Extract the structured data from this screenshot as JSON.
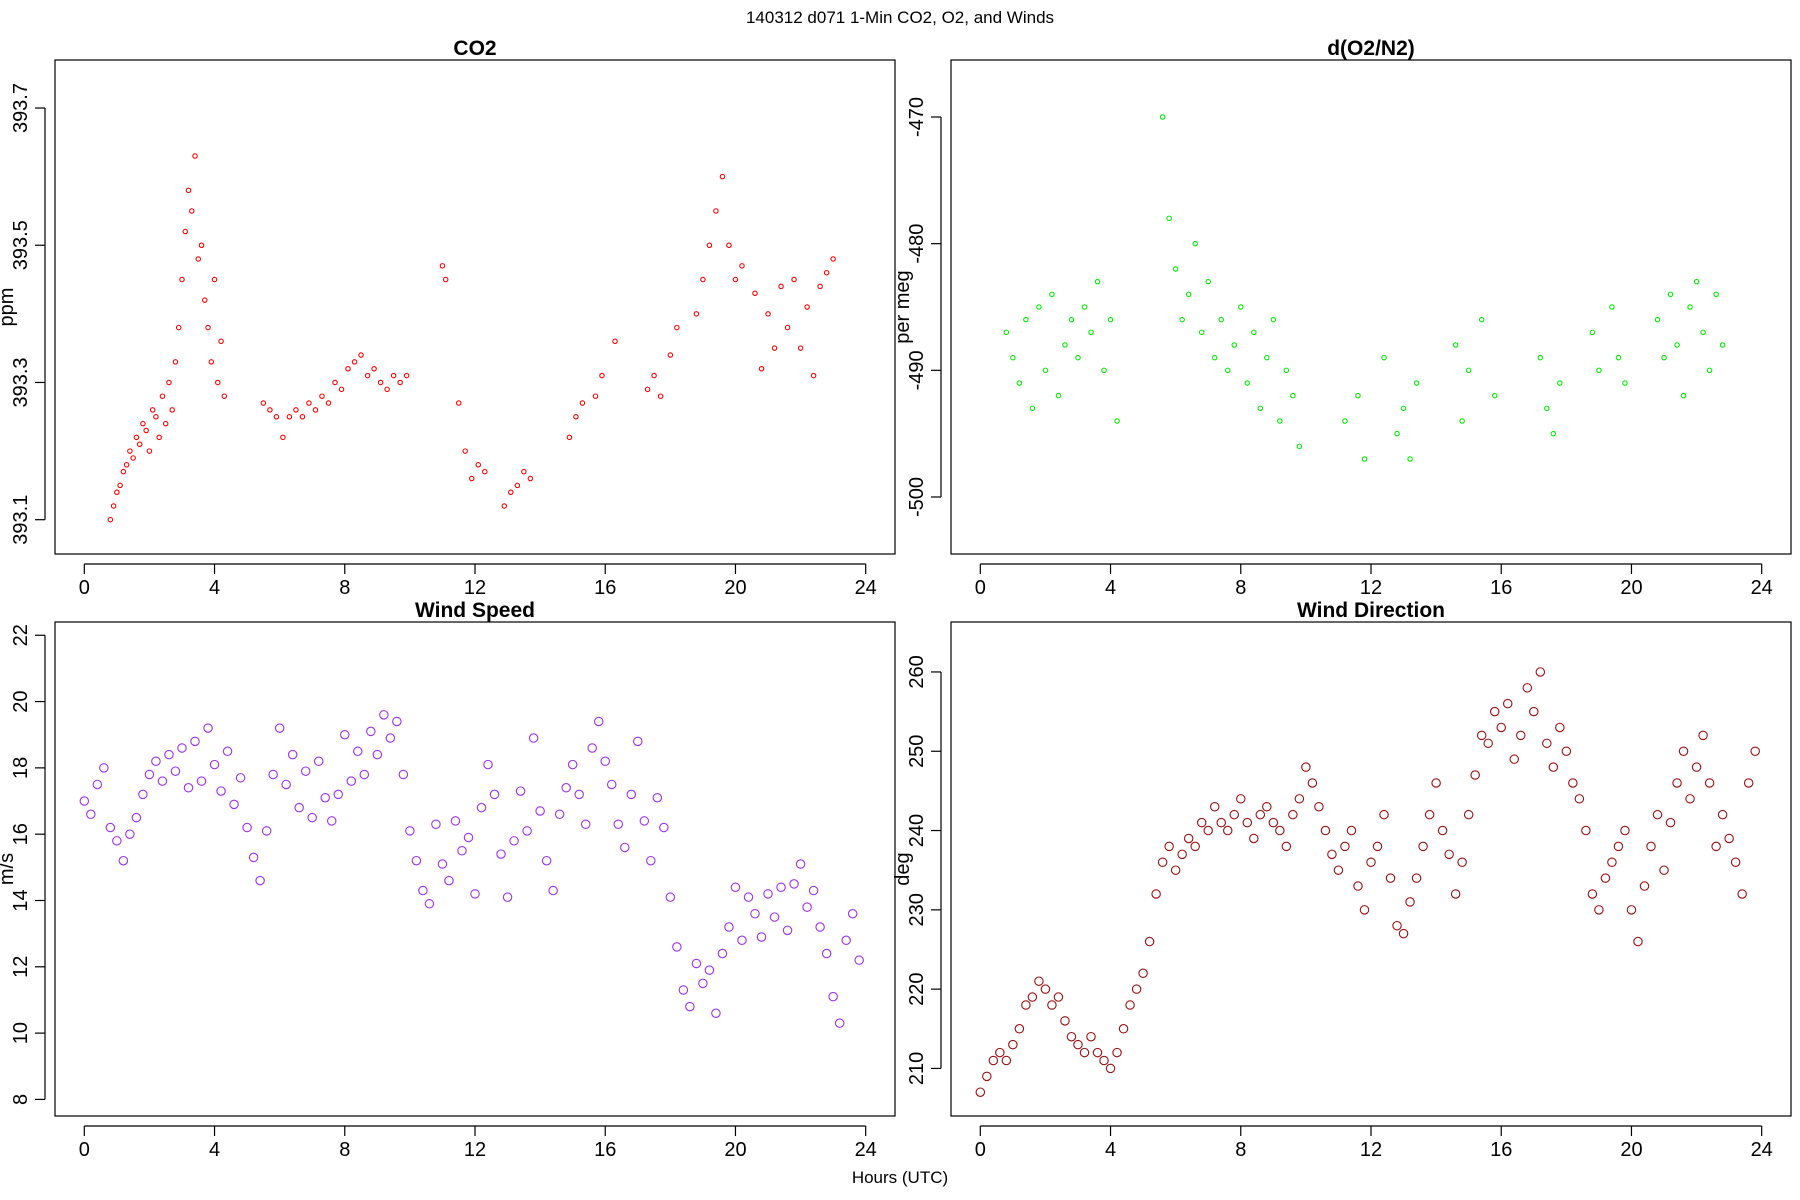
{
  "figure": {
    "title": "140312   d071   1-Min CO2, O2, and Winds",
    "xlabel": "Hours (UTC)"
  },
  "chart_data": [
    {
      "type": "scatter",
      "title": "CO2",
      "ylabel": "ppm",
      "xlabel": "Hours (UTC)",
      "xlim": [
        -0.9,
        24.9
      ],
      "ylim": [
        393.05,
        393.77
      ],
      "xticks": [
        0,
        4,
        8,
        12,
        16,
        20,
        24
      ],
      "yticks": [
        393.1,
        393.3,
        393.5,
        393.7
      ],
      "ytick_labels": [
        "393.1",
        "393.3",
        "393.5",
        "393.7"
      ],
      "color": "#ff0000",
      "series": [
        {
          "x": [
            0.8,
            0.9,
            1.0,
            1.1,
            1.2,
            1.3,
            1.4,
            1.5,
            1.6,
            1.7,
            1.8,
            1.9,
            2.0,
            2.1,
            2.2,
            2.3,
            2.4,
            2.5,
            2.6,
            2.7,
            2.8,
            2.9,
            3.0,
            3.1,
            3.2,
            3.3,
            3.4,
            3.5,
            3.6,
            3.7,
            3.8,
            3.9,
            4.0,
            4.1,
            4.2,
            4.3,
            5.5,
            5.7,
            5.9,
            6.1,
            6.3,
            6.5,
            6.7,
            6.9,
            7.1,
            7.3,
            7.5,
            7.7,
            7.9,
            8.1,
            8.3,
            8.5,
            8.7,
            8.9,
            9.1,
            9.3,
            9.5,
            9.7,
            9.9,
            11.0,
            11.1,
            11.5,
            11.7,
            11.9,
            12.1,
            12.3,
            12.9,
            13.1,
            13.3,
            13.5,
            13.7,
            14.9,
            15.1,
            15.3,
            15.7,
            15.9,
            16.3,
            17.3,
            17.5,
            17.7,
            18.0,
            18.2,
            18.8,
            19.0,
            19.2,
            19.4,
            19.6,
            19.8,
            20.0,
            20.2,
            20.6,
            20.8,
            21.0,
            21.2,
            21.4,
            21.6,
            21.8,
            22.0,
            22.2,
            22.4,
            22.6,
            22.8,
            23.0
          ],
          "y": [
            393.1,
            393.12,
            393.14,
            393.15,
            393.17,
            393.18,
            393.2,
            393.19,
            393.22,
            393.21,
            393.24,
            393.23,
            393.2,
            393.26,
            393.25,
            393.22,
            393.28,
            393.24,
            393.3,
            393.26,
            393.33,
            393.38,
            393.45,
            393.52,
            393.58,
            393.55,
            393.63,
            393.48,
            393.5,
            393.42,
            393.38,
            393.33,
            393.45,
            393.3,
            393.36,
            393.28,
            393.27,
            393.26,
            393.25,
            393.22,
            393.25,
            393.26,
            393.25,
            393.27,
            393.26,
            393.28,
            393.27,
            393.3,
            393.29,
            393.32,
            393.33,
            393.34,
            393.31,
            393.32,
            393.3,
            393.29,
            393.31,
            393.3,
            393.31,
            393.47,
            393.45,
            393.27,
            393.2,
            393.16,
            393.18,
            393.17,
            393.12,
            393.14,
            393.15,
            393.17,
            393.16,
            393.22,
            393.25,
            393.27,
            393.28,
            393.31,
            393.36,
            393.29,
            393.31,
            393.28,
            393.34,
            393.38,
            393.4,
            393.45,
            393.5,
            393.55,
            393.6,
            393.5,
            393.45,
            393.47,
            393.43,
            393.32,
            393.4,
            393.35,
            393.44,
            393.38,
            393.45,
            393.35,
            393.41,
            393.31,
            393.44,
            393.46,
            393.48
          ]
        }
      ]
    },
    {
      "type": "scatter",
      "title": "d(O2/N2)",
      "ylabel": "per meg",
      "xlabel": "Hours (UTC)",
      "xlim": [
        -0.9,
        24.9
      ],
      "ylim": [
        -504.5,
        -465.5
      ],
      "xticks": [
        0,
        4,
        8,
        12,
        16,
        20,
        24
      ],
      "yticks": [
        -500,
        -490,
        -480,
        -470
      ],
      "ytick_labels": [
        "-500",
        "-490",
        "-480",
        "-470"
      ],
      "color": "#00ee00",
      "series": [
        {
          "x": [
            0.8,
            1.0,
            1.2,
            1.4,
            1.6,
            1.8,
            2.0,
            2.2,
            2.4,
            2.6,
            2.8,
            3.0,
            3.2,
            3.4,
            3.6,
            3.8,
            4.0,
            4.2,
            5.6,
            5.8,
            6.0,
            6.2,
            6.4,
            6.6,
            6.8,
            7.0,
            7.2,
            7.4,
            7.6,
            7.8,
            8.0,
            8.2,
            8.4,
            8.6,
            8.8,
            9.0,
            9.2,
            9.4,
            9.6,
            9.8,
            11.2,
            11.6,
            11.8,
            12.4,
            12.8,
            13.0,
            13.2,
            13.4,
            14.6,
            14.8,
            15.0,
            15.4,
            15.8,
            17.2,
            17.4,
            17.6,
            17.8,
            18.8,
            19.0,
            19.4,
            19.6,
            19.8,
            20.8,
            21.0,
            21.2,
            21.4,
            21.6,
            21.8,
            22.0,
            22.2,
            22.4,
            22.6,
            22.8
          ],
          "y": [
            -487,
            -489,
            -491,
            -486,
            -493,
            -485,
            -490,
            -484,
            -492,
            -488,
            -486,
            -489,
            -485,
            -487,
            -483,
            -490,
            -486,
            -494,
            -470,
            -478,
            -482,
            -486,
            -484,
            -480,
            -487,
            -483,
            -489,
            -486,
            -490,
            -488,
            -485,
            -491,
            -487,
            -493,
            -489,
            -486,
            -494,
            -490,
            -492,
            -496,
            -494,
            -492,
            -497,
            -489,
            -495,
            -493,
            -497,
            -491,
            -488,
            -494,
            -490,
            -486,
            -492,
            -489,
            -493,
            -495,
            -491,
            -487,
            -490,
            -485,
            -489,
            -491,
            -486,
            -489,
            -484,
            -488,
            -492,
            -485,
            -483,
            -487,
            -490,
            -484,
            -488
          ]
        }
      ]
    },
    {
      "type": "scatter",
      "title": "Wind Speed",
      "ylabel": "m/s",
      "xlabel": "Hours (UTC)",
      "xlim": [
        -0.9,
        24.9
      ],
      "ylim": [
        7.5,
        22.4
      ],
      "xticks": [
        0,
        4,
        8,
        12,
        16,
        20,
        24
      ],
      "yticks": [
        8,
        10,
        12,
        14,
        16,
        18,
        20,
        22
      ],
      "ytick_labels": [
        "8",
        "10",
        "12",
        "14",
        "16",
        "18",
        "20",
        "22"
      ],
      "color": "#9f30f0",
      "series": [
        {
          "x": [
            0.0,
            0.2,
            0.4,
            0.6,
            0.8,
            1.0,
            1.2,
            1.4,
            1.6,
            1.8,
            2.0,
            2.2,
            2.4,
            2.6,
            2.8,
            3.0,
            3.2,
            3.4,
            3.6,
            3.8,
            4.0,
            4.2,
            4.4,
            4.6,
            4.8,
            5.0,
            5.2,
            5.4,
            5.6,
            5.8,
            6.0,
            6.2,
            6.4,
            6.6,
            6.8,
            7.0,
            7.2,
            7.4,
            7.6,
            7.8,
            8.0,
            8.2,
            8.4,
            8.6,
            8.8,
            9.0,
            9.2,
            9.4,
            9.6,
            9.8,
            10.0,
            10.2,
            10.4,
            10.6,
            10.8,
            11.0,
            11.2,
            11.4,
            11.6,
            11.8,
            12.0,
            12.2,
            12.4,
            12.6,
            12.8,
            13.0,
            13.2,
            13.4,
            13.6,
            13.8,
            14.0,
            14.2,
            14.4,
            14.6,
            14.8,
            15.0,
            15.2,
            15.4,
            15.6,
            15.8,
            16.0,
            16.2,
            16.4,
            16.6,
            16.8,
            17.0,
            17.2,
            17.4,
            17.6,
            17.8,
            18.0,
            18.2,
            18.4,
            18.6,
            18.8,
            19.0,
            19.2,
            19.4,
            19.6,
            19.8,
            20.0,
            20.2,
            20.4,
            20.6,
            20.8,
            21.0,
            21.2,
            21.4,
            21.6,
            21.8,
            22.0,
            22.2,
            22.4,
            22.6,
            22.8,
            23.0,
            23.2,
            23.4,
            23.6,
            23.8
          ],
          "y": [
            17.0,
            16.6,
            17.5,
            18.0,
            16.2,
            15.8,
            15.2,
            16.0,
            16.5,
            17.2,
            17.8,
            18.2,
            17.6,
            18.4,
            17.9,
            18.6,
            17.4,
            18.8,
            17.6,
            19.2,
            18.1,
            17.3,
            18.5,
            16.9,
            17.7,
            16.2,
            15.3,
            14.6,
            16.1,
            17.8,
            19.2,
            17.5,
            18.4,
            16.8,
            17.9,
            16.5,
            18.2,
            17.1,
            16.4,
            17.2,
            19.0,
            17.6,
            18.5,
            17.8,
            19.1,
            18.4,
            19.6,
            18.9,
            19.4,
            17.8,
            16.1,
            15.2,
            14.3,
            13.9,
            16.3,
            15.1,
            14.6,
            16.4,
            15.5,
            15.9,
            14.2,
            16.8,
            18.1,
            17.2,
            15.4,
            14.1,
            15.8,
            17.3,
            16.1,
            18.9,
            16.7,
            15.2,
            14.3,
            16.6,
            17.4,
            18.1,
            17.2,
            16.3,
            18.6,
            19.4,
            18.2,
            17.5,
            16.3,
            15.6,
            17.2,
            18.8,
            16.4,
            15.2,
            17.1,
            16.2,
            14.1,
            12.6,
            11.3,
            10.8,
            12.1,
            11.5,
            11.9,
            10.6,
            12.4,
            13.2,
            14.4,
            12.8,
            14.1,
            13.6,
            12.9,
            14.2,
            13.5,
            14.4,
            13.1,
            14.5,
            15.1,
            13.8,
            14.3,
            13.2,
            12.4,
            11.1,
            10.3,
            12.8,
            13.6,
            12.2
          ]
        }
      ]
    },
    {
      "type": "scatter",
      "title": "Wind Direction",
      "ylabel": "deg",
      "xlabel": "Hours (UTC)",
      "xlim": [
        -0.9,
        24.9
      ],
      "ylim": [
        204,
        266.3
      ],
      "xticks": [
        0,
        4,
        8,
        12,
        16,
        20,
        24
      ],
      "yticks": [
        210,
        220,
        230,
        240,
        250,
        260
      ],
      "ytick_labels": [
        "210",
        "220",
        "230",
        "240",
        "250",
        "260"
      ],
      "color": "#9b1010",
      "series": [
        {
          "x": [
            0.0,
            0.2,
            0.4,
            0.6,
            0.8,
            1.0,
            1.2,
            1.4,
            1.6,
            1.8,
            2.0,
            2.2,
            2.4,
            2.6,
            2.8,
            3.0,
            3.2,
            3.4,
            3.6,
            3.8,
            4.0,
            4.2,
            4.4,
            4.6,
            4.8,
            5.0,
            5.2,
            5.4,
            5.6,
            5.8,
            6.0,
            6.2,
            6.4,
            6.6,
            6.8,
            7.0,
            7.2,
            7.4,
            7.6,
            7.8,
            8.0,
            8.2,
            8.4,
            8.6,
            8.8,
            9.0,
            9.2,
            9.4,
            9.6,
            9.8,
            10.0,
            10.2,
            10.4,
            10.6,
            10.8,
            11.0,
            11.2,
            11.4,
            11.6,
            11.8,
            12.0,
            12.2,
            12.4,
            12.6,
            12.8,
            13.0,
            13.2,
            13.4,
            13.6,
            13.8,
            14.0,
            14.2,
            14.4,
            14.6,
            14.8,
            15.0,
            15.2,
            15.4,
            15.6,
            15.8,
            16.0,
            16.2,
            16.4,
            16.6,
            16.8,
            17.0,
            17.2,
            17.4,
            17.6,
            17.8,
            18.0,
            18.2,
            18.4,
            18.6,
            18.8,
            19.0,
            19.2,
            19.4,
            19.6,
            19.8,
            20.0,
            20.2,
            20.4,
            20.6,
            20.8,
            21.0,
            21.2,
            21.4,
            21.6,
            21.8,
            22.0,
            22.2,
            22.4,
            22.6,
            22.8,
            23.0,
            23.2,
            23.4,
            23.6,
            23.8
          ],
          "y": [
            207,
            209,
            211,
            212,
            211,
            213,
            215,
            218,
            219,
            221,
            220,
            218,
            219,
            216,
            214,
            213,
            212,
            214,
            212,
            211,
            210,
            212,
            215,
            218,
            220,
            222,
            226,
            232,
            236,
            238,
            235,
            237,
            239,
            238,
            241,
            240,
            243,
            241,
            240,
            242,
            244,
            241,
            239,
            242,
            243,
            241,
            240,
            238,
            242,
            244,
            248,
            246,
            243,
            240,
            237,
            235,
            238,
            240,
            233,
            230,
            236,
            238,
            242,
            234,
            228,
            227,
            231,
            234,
            238,
            242,
            246,
            240,
            237,
            232,
            236,
            242,
            247,
            252,
            251,
            255,
            253,
            256,
            249,
            252,
            258,
            255,
            260,
            251,
            248,
            253,
            250,
            246,
            244,
            240,
            232,
            230,
            234,
            236,
            238,
            240,
            230,
            226,
            233,
            238,
            242,
            235,
            241,
            246,
            250,
            244,
            248,
            252,
            246,
            238,
            242,
            239,
            236,
            232,
            246,
            250
          ]
        }
      ]
    }
  ]
}
